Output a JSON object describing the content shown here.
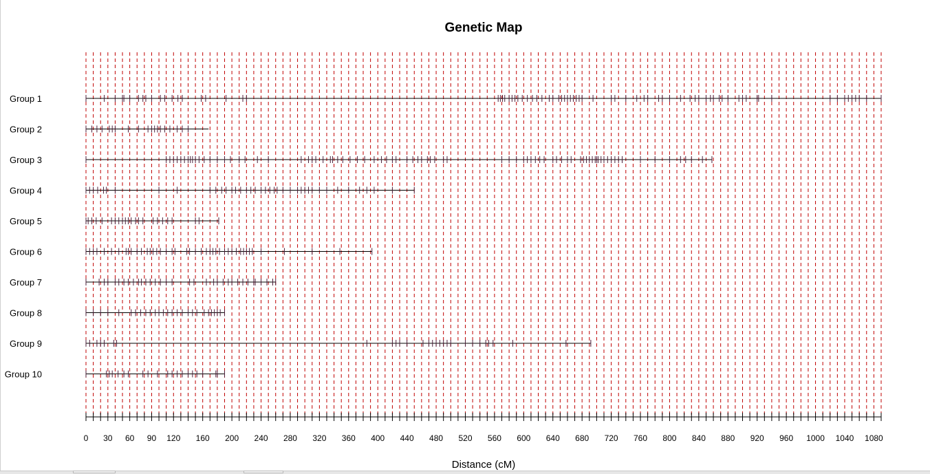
{
  "chart_data": {
    "type": "genetic-map",
    "title": "Genetic Map",
    "xlabel": "Distance (cM)",
    "xlim": [
      0,
      1090
    ],
    "x_ticks": [
      0,
      30,
      60,
      90,
      120,
      160,
      200,
      240,
      280,
      320,
      360,
      400,
      440,
      480,
      520,
      560,
      600,
      640,
      680,
      720,
      760,
      800,
      840,
      880,
      920,
      960,
      1000,
      1040,
      1080
    ],
    "grid_interval": 10,
    "grid_color": "#c00000",
    "line_color": "#000000",
    "marker_color": "#4d1f3a",
    "groups": [
      {
        "name": "Group 1",
        "length": 1090,
        "markers": [
          0,
          25,
          40,
          50,
          52,
          60,
          72,
          78,
          82,
          90,
          102,
          108,
          118,
          126,
          132,
          158,
          164,
          192,
          215,
          220,
          565,
          568,
          571,
          574,
          580,
          584,
          588,
          592,
          598,
          605,
          612,
          618,
          625,
          635,
          640,
          648,
          652,
          656,
          660,
          664,
          668,
          672,
          676,
          680,
          695,
          720,
          725,
          740,
          755,
          765,
          770,
          785,
          790,
          800,
          815,
          828,
          835,
          840,
          850,
          856,
          860,
          868,
          872,
          880,
          895,
          900,
          905,
          920,
          922,
          940,
          1020,
          1030,
          1040,
          1045,
          1050,
          1055,
          1060,
          1070,
          1090
        ]
      },
      {
        "name": "Group 2",
        "length": 168,
        "markers": [
          0,
          8,
          15,
          22,
          32,
          36,
          40,
          58,
          72,
          85,
          90,
          94,
          98,
          102,
          108,
          115,
          125,
          132,
          140
        ]
      },
      {
        "name": "Group 3",
        "length": 858,
        "markers": [
          0,
          110,
          115,
          120,
          125,
          130,
          135,
          140,
          143,
          146,
          150,
          155,
          162,
          170,
          180,
          190,
          198,
          210,
          218,
          235,
          250,
          295,
          305,
          310,
          315,
          325,
          335,
          338,
          345,
          352,
          362,
          372,
          382,
          395,
          405,
          412,
          420,
          425,
          440,
          448,
          455,
          460,
          468,
          472,
          478,
          490,
          495,
          570,
          580,
          590,
          600,
          605,
          610,
          616,
          622,
          628,
          640,
          645,
          652,
          660,
          665,
          678,
          682,
          686,
          690,
          694,
          698,
          700,
          702,
          706,
          710,
          715,
          720,
          725,
          730,
          735,
          760,
          780,
          800,
          815,
          822,
          830,
          845,
          858
        ]
      },
      {
        "name": "Group 4",
        "length": 450,
        "markers": [
          0,
          5,
          10,
          16,
          24,
          28,
          40,
          100,
          125,
          170,
          178,
          186,
          192,
          200,
          205,
          212,
          220,
          226,
          232,
          240,
          246,
          252,
          258,
          262,
          270,
          280,
          290,
          295,
          300,
          305,
          310,
          320,
          330,
          345,
          360,
          375,
          385,
          395,
          420,
          450
        ]
      },
      {
        "name": "Group 5",
        "length": 182,
        "markers": [
          0,
          3,
          8,
          14,
          22,
          35,
          40,
          45,
          50,
          54,
          58,
          62,
          68,
          72,
          78,
          92,
          98,
          105,
          112,
          118,
          150,
          155,
          182
        ]
      },
      {
        "name": "Group 6",
        "length": 392,
        "markers": [
          0,
          5,
          10,
          15,
          25,
          35,
          45,
          55,
          58,
          62,
          70,
          76,
          84,
          88,
          92,
          97,
          102,
          110,
          118,
          122,
          138,
          142,
          150,
          158,
          165,
          170,
          174,
          178,
          183,
          190,
          195,
          200,
          206,
          212,
          216,
          220,
          224,
          228,
          240,
          272,
          310,
          348,
          392
        ]
      },
      {
        "name": "Group 7",
        "length": 260,
        "markers": [
          0,
          18,
          25,
          30,
          40,
          45,
          52,
          58,
          65,
          72,
          76,
          82,
          88,
          95,
          102,
          110,
          118,
          142,
          148,
          165,
          175,
          180,
          188,
          195,
          200,
          208,
          215,
          222,
          230,
          232,
          240,
          248,
          256,
          260
        ]
      },
      {
        "name": "Group 8",
        "length": 190,
        "markers": [
          0,
          10,
          20,
          30,
          45,
          62,
          68,
          75,
          82,
          88,
          95,
          100,
          106,
          112,
          118,
          125,
          132,
          140,
          146,
          152,
          162,
          168,
          172,
          176,
          180,
          184,
          190
        ]
      },
      {
        "name": "Group 9",
        "length": 692,
        "markers": [
          0,
          5,
          15,
          20,
          25,
          38,
          42,
          385,
          420,
          425,
          430,
          440,
          462,
          470,
          475,
          480,
          485,
          490,
          495,
          500,
          520,
          530,
          540,
          548,
          552,
          558,
          585,
          658,
          692
        ]
      },
      {
        "name": "Group 10",
        "length": 190,
        "markers": [
          0,
          28,
          32,
          36,
          44,
          52,
          58,
          78,
          85,
          98,
          112,
          118,
          125,
          132,
          140,
          146,
          152,
          160,
          178,
          180,
          190
        ]
      }
    ]
  }
}
